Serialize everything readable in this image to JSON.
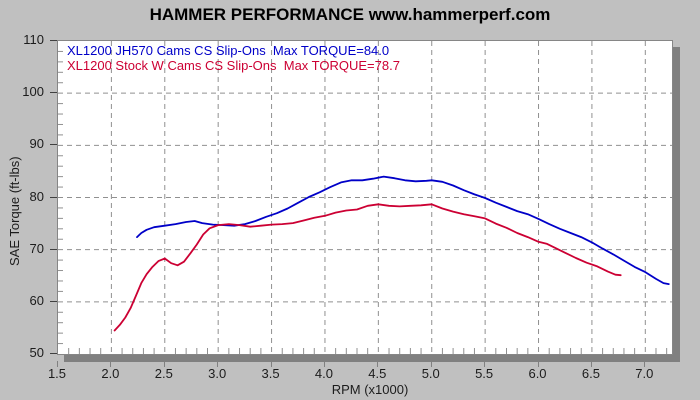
{
  "header": {
    "title": "HAMMER PERFORMANCE www.hammerperf.com"
  },
  "chart_data": {
    "type": "line",
    "title": "HAMMER PERFORMANCE www.hammerperf.com",
    "xlabel": "RPM (x1000)",
    "ylabel": "SAE Torque (ft-lbs)",
    "xlim": [
      1.5,
      7.25
    ],
    "ylim": [
      50,
      110
    ],
    "x_ticks": [
      "1.5",
      "2.0",
      "2.5",
      "3.0",
      "3.5",
      "4.0",
      "4.5",
      "5.0",
      "5.5",
      "6.0",
      "6.5",
      "7.0"
    ],
    "y_ticks": [
      "110",
      "100",
      "90",
      "80",
      "70",
      "60",
      "50"
    ],
    "x_minor_step": 0.1,
    "y_minor_step": 2,
    "grid": "dashed",
    "grid_color": "#909090",
    "background": "#c0c0c0",
    "plot_background": "#ffffff",
    "legend_position": "top-left-inside",
    "series": [
      {
        "name": "XL1200 JH570 Cams CS Slip-Ons  Max TORQUE=84.0",
        "color": "#0000c8",
        "max_torque": 84.0,
        "points": [
          [
            2.24,
            72.4
          ],
          [
            2.28,
            73.2
          ],
          [
            2.33,
            73.8
          ],
          [
            2.4,
            74.3
          ],
          [
            2.5,
            74.6
          ],
          [
            2.6,
            74.9
          ],
          [
            2.7,
            75.3
          ],
          [
            2.78,
            75.5
          ],
          [
            2.85,
            75.1
          ],
          [
            2.95,
            74.8
          ],
          [
            3.05,
            74.7
          ],
          [
            3.15,
            74.6
          ],
          [
            3.25,
            74.9
          ],
          [
            3.35,
            75.5
          ],
          [
            3.45,
            76.3
          ],
          [
            3.55,
            77.0
          ],
          [
            3.65,
            77.9
          ],
          [
            3.75,
            79.0
          ],
          [
            3.85,
            80.1
          ],
          [
            3.95,
            81.0
          ],
          [
            4.05,
            82.0
          ],
          [
            4.15,
            82.9
          ],
          [
            4.25,
            83.3
          ],
          [
            4.35,
            83.3
          ],
          [
            4.45,
            83.6
          ],
          [
            4.55,
            84.0
          ],
          [
            4.65,
            83.7
          ],
          [
            4.75,
            83.3
          ],
          [
            4.85,
            83.1
          ],
          [
            4.95,
            83.2
          ],
          [
            5.0,
            83.3
          ],
          [
            5.1,
            83.0
          ],
          [
            5.2,
            82.3
          ],
          [
            5.3,
            81.4
          ],
          [
            5.4,
            80.6
          ],
          [
            5.5,
            79.9
          ],
          [
            5.6,
            79.0
          ],
          [
            5.7,
            78.2
          ],
          [
            5.8,
            77.4
          ],
          [
            5.9,
            76.8
          ],
          [
            6.0,
            75.9
          ],
          [
            6.1,
            74.9
          ],
          [
            6.2,
            74.0
          ],
          [
            6.3,
            73.2
          ],
          [
            6.4,
            72.4
          ],
          [
            6.5,
            71.4
          ],
          [
            6.6,
            70.2
          ],
          [
            6.7,
            69.1
          ],
          [
            6.8,
            67.9
          ],
          [
            6.9,
            66.7
          ],
          [
            7.0,
            65.7
          ],
          [
            7.1,
            64.4
          ],
          [
            7.17,
            63.6
          ],
          [
            7.22,
            63.4
          ]
        ]
      },
      {
        "name": "XL1200 Stock W Cams CS Slip-Ons  Max TORQUE=78.7",
        "color": "#cc0033",
        "max_torque": 78.7,
        "points": [
          [
            2.03,
            54.5
          ],
          [
            2.08,
            55.6
          ],
          [
            2.13,
            57.0
          ],
          [
            2.18,
            58.8
          ],
          [
            2.23,
            61.2
          ],
          [
            2.28,
            63.6
          ],
          [
            2.33,
            65.3
          ],
          [
            2.38,
            66.6
          ],
          [
            2.44,
            67.8
          ],
          [
            2.5,
            68.3
          ],
          [
            2.56,
            67.4
          ],
          [
            2.62,
            67.0
          ],
          [
            2.68,
            67.7
          ],
          [
            2.74,
            69.3
          ],
          [
            2.8,
            71.0
          ],
          [
            2.86,
            72.9
          ],
          [
            2.92,
            74.1
          ],
          [
            3.0,
            74.7
          ],
          [
            3.1,
            74.9
          ],
          [
            3.2,
            74.7
          ],
          [
            3.3,
            74.4
          ],
          [
            3.4,
            74.6
          ],
          [
            3.5,
            74.8
          ],
          [
            3.6,
            74.9
          ],
          [
            3.7,
            75.1
          ],
          [
            3.8,
            75.6
          ],
          [
            3.9,
            76.1
          ],
          [
            4.0,
            76.5
          ],
          [
            4.1,
            77.1
          ],
          [
            4.2,
            77.5
          ],
          [
            4.3,
            77.7
          ],
          [
            4.4,
            78.4
          ],
          [
            4.5,
            78.7
          ],
          [
            4.6,
            78.4
          ],
          [
            4.7,
            78.3
          ],
          [
            4.8,
            78.4
          ],
          [
            4.9,
            78.5
          ],
          [
            5.0,
            78.7
          ],
          [
            5.1,
            77.9
          ],
          [
            5.2,
            77.3
          ],
          [
            5.3,
            76.8
          ],
          [
            5.4,
            76.4
          ],
          [
            5.5,
            76.0
          ],
          [
            5.6,
            75.0
          ],
          [
            5.7,
            74.2
          ],
          [
            5.8,
            73.2
          ],
          [
            5.9,
            72.4
          ],
          [
            6.0,
            71.5
          ],
          [
            6.08,
            71.1
          ],
          [
            6.15,
            70.4
          ],
          [
            6.25,
            69.4
          ],
          [
            6.35,
            68.4
          ],
          [
            6.45,
            67.5
          ],
          [
            6.55,
            66.8
          ],
          [
            6.65,
            65.8
          ],
          [
            6.72,
            65.2
          ],
          [
            6.77,
            65.1
          ]
        ]
      }
    ]
  }
}
